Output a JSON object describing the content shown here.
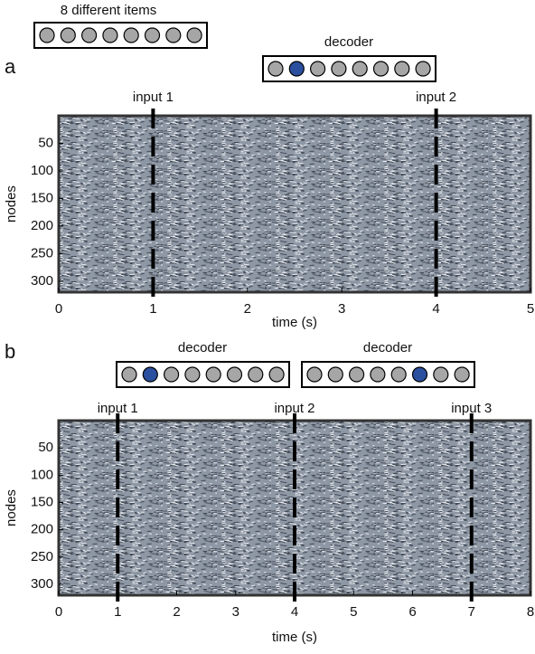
{
  "chart_data": [
    {
      "type": "heatmap",
      "panel_label": "a",
      "header": "8 different items",
      "decoders": [
        "decoder"
      ],
      "xlabel": "time (s)",
      "ylabel": "nodes",
      "xlim": [
        0,
        5
      ],
      "xticks": [
        0,
        1,
        2,
        3,
        4,
        5
      ],
      "ylim": [
        0,
        320
      ],
      "yticks": [
        50,
        100,
        150,
        200,
        250,
        300
      ],
      "y_inverted": true,
      "events": [
        {
          "x": 1,
          "label": "input 1"
        },
        {
          "x": 4,
          "label": "input 2"
        }
      ]
    },
    {
      "type": "heatmap",
      "panel_label": "b",
      "decoders": [
        "decoder",
        "decoder"
      ],
      "xlabel": "time (s)",
      "ylabel": "nodes",
      "xlim": [
        0,
        8
      ],
      "xticks": [
        0,
        1,
        2,
        3,
        4,
        5,
        6,
        7,
        8
      ],
      "ylim": [
        0,
        320
      ],
      "yticks": [
        50,
        100,
        150,
        200,
        250,
        300
      ],
      "y_inverted": true,
      "events": [
        {
          "x": 1,
          "label": "input 1"
        },
        {
          "x": 4,
          "label": "input 2"
        },
        {
          "x": 7,
          "label": "input 3"
        }
      ]
    }
  ]
}
